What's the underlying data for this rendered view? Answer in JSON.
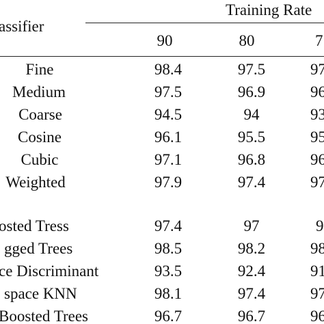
{
  "header": {
    "classifier_label": "assifier",
    "group_label": "Training Rate",
    "rate_columns": [
      "90",
      "80",
      "7"
    ]
  },
  "rows": [
    {
      "classifier": "Fine",
      "values": [
        "98.4",
        "97.5",
        "97"
      ]
    },
    {
      "classifier": "Medium",
      "values": [
        "97.5",
        "96.9",
        "96"
      ]
    },
    {
      "classifier": "Coarse",
      "values": [
        "94.5",
        "94",
        "93"
      ]
    },
    {
      "classifier": "Cosine",
      "values": [
        "96.1",
        "95.5",
        "95"
      ]
    },
    {
      "classifier": "Cubic",
      "values": [
        "97.1",
        "96.8",
        "96"
      ]
    },
    {
      "classifier": "Weighted",
      "values": [
        "97.9",
        "97.4",
        "97"
      ]
    },
    {
      "classifier": "osted Tress",
      "values": [
        "97.4",
        "97",
        "9"
      ]
    },
    {
      "classifier": "gged Trees",
      "values": [
        "98.5",
        "98.2",
        "98"
      ]
    },
    {
      "classifier": "ce Discriminant",
      "values": [
        "93.5",
        "92.4",
        "91"
      ]
    },
    {
      "classifier": "space KNN",
      "values": [
        "98.1",
        "97.4",
        "97"
      ]
    },
    {
      "classifier": "Boosted Trees",
      "values": [
        "96.7",
        "96.7",
        "96"
      ]
    }
  ]
}
